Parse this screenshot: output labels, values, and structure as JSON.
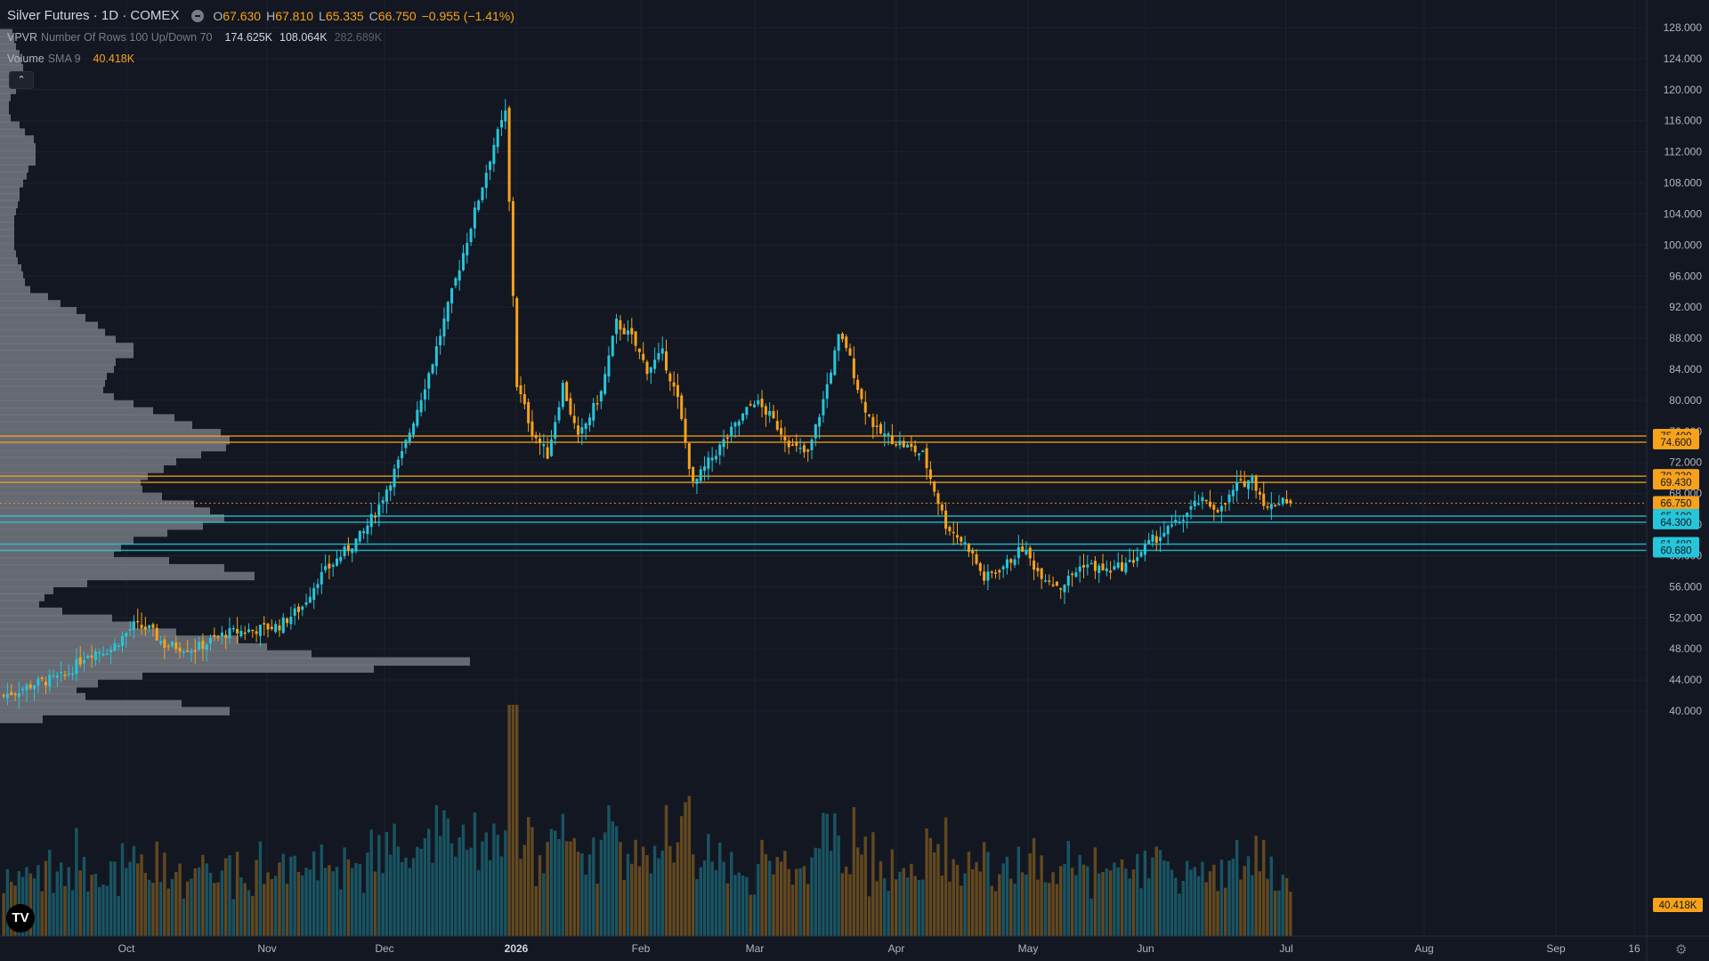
{
  "header": {
    "symbol": "Silver Futures · 1D · COMEX",
    "ohlc": {
      "o_label": "O",
      "o": "67.630",
      "h_label": "H",
      "h": "67.810",
      "l_label": "L",
      "l": "65.335",
      "c_label": "C",
      "c": "66.750",
      "chg": "−0.955 (−1.41%)"
    },
    "vpvr": {
      "name": "VPVR",
      "params": "Number Of Rows 100 Up/Down 70",
      "up": "174.625K",
      "down": "108.064K",
      "total": "282.689K"
    },
    "volume": {
      "name": "Volume",
      "params": "SMA 9",
      "value": "40.418K"
    },
    "collapse_glyph": "⌃"
  },
  "colors": {
    "background": "#131722",
    "up": "#26c6da",
    "down": "#f7a21b",
    "grid": "#1e222d",
    "text": "#b2b5be",
    "profile": "#6f727b"
  },
  "icons": {
    "logo": "tradingview-logo-icon",
    "settings": "gear-icon",
    "visibility": "eye-icon"
  },
  "logo_text": "TV",
  "chart_data": {
    "type": "candlestick",
    "title": "Silver Futures · 1D · COMEX",
    "y_axis_ticks": [
      "128.000",
      "124.000",
      "120.000",
      "116.000",
      "112.000",
      "108.000",
      "104.000",
      "100.000",
      "96.000",
      "92.000",
      "88.000",
      "84.000",
      "80.000",
      "76.000",
      "72.000",
      "68.000",
      "64.000",
      "60.000",
      "56.000",
      "52.000",
      "48.000",
      "44.000",
      "40.000"
    ],
    "ylim": [
      37.0,
      130.0
    ],
    "x_axis_labels": [
      "Oct",
      "Nov",
      "Dec",
      "2026",
      "Feb",
      "Mar",
      "Apr",
      "May",
      "Jun",
      "Jul",
      "Aug",
      "Sep",
      "16"
    ],
    "horizontal_levels": [
      {
        "value": 75.4,
        "label": "75.400",
        "color": "#f7a21b"
      },
      {
        "value": 74.6,
        "label": "74.600",
        "color": "#f7a21b"
      },
      {
        "value": 70.23,
        "label": "70.230",
        "color": "#f7a21b"
      },
      {
        "value": 69.43,
        "label": "69.430",
        "color": "#f7a21b"
      },
      {
        "value": 66.75,
        "label": "66.750",
        "color": "#f7a21b"
      },
      {
        "value": 65.1,
        "label": "65.100",
        "color": "#26c6da"
      },
      {
        "value": 64.3,
        "label": "64.300",
        "color": "#26c6da"
      },
      {
        "value": 61.48,
        "label": "61.480",
        "color": "#26c6da"
      },
      {
        "value": 60.68,
        "label": "60.680",
        "color": "#26c6da"
      }
    ],
    "volume_label": "40.418K",
    "price_path": [
      [
        0,
        42
      ],
      [
        8,
        43.5
      ],
      [
        16,
        44.5
      ],
      [
        22,
        47.5
      ],
      [
        28,
        48
      ],
      [
        34,
        51
      ],
      [
        38,
        50.5
      ],
      [
        42,
        48.5
      ],
      [
        50,
        48
      ],
      [
        58,
        50
      ],
      [
        66,
        50.5
      ],
      [
        72,
        51
      ],
      [
        78,
        53.5
      ],
      [
        82,
        57
      ],
      [
        86,
        59
      ],
      [
        90,
        61
      ],
      [
        94,
        63
      ],
      [
        98,
        66.5
      ],
      [
        104,
        73
      ],
      [
        108,
        79
      ],
      [
        112,
        85
      ],
      [
        116,
        92
      ],
      [
        120,
        99
      ],
      [
        124,
        106
      ],
      [
        128,
        113
      ],
      [
        131,
        117
      ],
      [
        134,
        82
      ],
      [
        138,
        76
      ],
      [
        142,
        73
      ],
      [
        146,
        82
      ],
      [
        150,
        75
      ],
      [
        156,
        81
      ],
      [
        160,
        90
      ],
      [
        164,
        88
      ],
      [
        168,
        84
      ],
      [
        172,
        86
      ],
      [
        176,
        80
      ],
      [
        180,
        69
      ],
      [
        184,
        72
      ],
      [
        190,
        76
      ],
      [
        196,
        80
      ],
      [
        200,
        78
      ],
      [
        206,
        74
      ],
      [
        210,
        73
      ],
      [
        214,
        80
      ],
      [
        218,
        88
      ],
      [
        220,
        87
      ],
      [
        224,
        80
      ],
      [
        228,
        76
      ],
      [
        232,
        75
      ],
      [
        236,
        74
      ],
      [
        240,
        73
      ],
      [
        246,
        64
      ],
      [
        252,
        61
      ],
      [
        256,
        57
      ],
      [
        262,
        59
      ],
      [
        266,
        61
      ],
      [
        270,
        58
      ],
      [
        276,
        56
      ],
      [
        282,
        59
      ],
      [
        288,
        58
      ],
      [
        294,
        59
      ],
      [
        300,
        62
      ],
      [
        306,
        64
      ],
      [
        312,
        67
      ],
      [
        318,
        66
      ],
      [
        322,
        69
      ],
      [
        326,
        70
      ],
      [
        330,
        66
      ],
      [
        334,
        67.5
      ],
      [
        336,
        66.75
      ]
    ],
    "volume_profile": [
      {
        "price": 127.3,
        "volume": 14,
        "buy_share": 0.5
      },
      {
        "price": 126.4,
        "volume": 16,
        "buy_share": 0.5
      },
      {
        "price": 125.5,
        "volume": 18,
        "buy_share": 0.5
      },
      {
        "price": 124.6,
        "volume": 22,
        "buy_share": 0.5
      },
      {
        "price": 123.7,
        "volume": 24,
        "buy_share": 0.5
      },
      {
        "price": 122.8,
        "volume": 26,
        "buy_share": 0.5
      },
      {
        "price": 121.8,
        "volume": 26,
        "buy_share": 0.5
      },
      {
        "price": 120.9,
        "volume": 22,
        "buy_share": 0.5
      },
      {
        "price": 120.0,
        "volume": 18,
        "buy_share": 0.5
      },
      {
        "price": 119.1,
        "volume": 12,
        "buy_share": 0.5
      },
      {
        "price": 118.2,
        "volume": 10,
        "buy_share": 0.5
      },
      {
        "price": 117.2,
        "volume": 10,
        "buy_share": 0.5
      },
      {
        "price": 116.3,
        "volume": 12,
        "buy_share": 0.5
      },
      {
        "price": 115.4,
        "volume": 22,
        "buy_share": 0.5
      },
      {
        "price": 114.5,
        "volume": 28,
        "buy_share": 0.5
      },
      {
        "price": 113.6,
        "volume": 38,
        "buy_share": 0.5
      },
      {
        "price": 112.6,
        "volume": 40,
        "buy_share": 0.5
      },
      {
        "price": 111.7,
        "volume": 40,
        "buy_share": 0.5
      },
      {
        "price": 110.8,
        "volume": 40,
        "buy_share": 0.5
      },
      {
        "price": 109.9,
        "volume": 32,
        "buy_share": 0.5
      },
      {
        "price": 109.0,
        "volume": 30,
        "buy_share": 0.5
      },
      {
        "price": 108.0,
        "volume": 26,
        "buy_share": 0.5
      },
      {
        "price": 107.1,
        "volume": 22,
        "buy_share": 0.5
      },
      {
        "price": 106.2,
        "volume": 22,
        "buy_share": 0.5
      },
      {
        "price": 105.3,
        "volume": 20,
        "buy_share": 0.5
      },
      {
        "price": 104.4,
        "volume": 18,
        "buy_share": 0.5
      },
      {
        "price": 103.4,
        "volume": 16,
        "buy_share": 0.5
      },
      {
        "price": 102.5,
        "volume": 16,
        "buy_share": 0.5
      },
      {
        "price": 101.6,
        "volume": 16,
        "buy_share": 0.5
      },
      {
        "price": 100.7,
        "volume": 16,
        "buy_share": 0.5
      },
      {
        "price": 99.8,
        "volume": 16,
        "buy_share": 0.5
      },
      {
        "price": 98.8,
        "volume": 18,
        "buy_share": 0.5
      },
      {
        "price": 97.9,
        "volume": 20,
        "buy_share": 0.5
      },
      {
        "price": 97.0,
        "volume": 24,
        "buy_share": 0.5
      },
      {
        "price": 96.1,
        "volume": 26,
        "buy_share": 0.5
      },
      {
        "price": 95.2,
        "volume": 28,
        "buy_share": 0.5
      },
      {
        "price": 94.2,
        "volume": 34,
        "buy_share": 0.5
      },
      {
        "price": 93.3,
        "volume": 54,
        "buy_share": 0.5
      },
      {
        "price": 92.4,
        "volume": 68,
        "buy_share": 0.5
      },
      {
        "price": 91.5,
        "volume": 86,
        "buy_share": 0.5
      },
      {
        "price": 90.6,
        "volume": 96,
        "buy_share": 0.5
      },
      {
        "price": 89.6,
        "volume": 110,
        "buy_share": 0.5
      },
      {
        "price": 88.7,
        "volume": 118,
        "buy_share": 0.5
      },
      {
        "price": 87.8,
        "volume": 130,
        "buy_share": 0.5
      },
      {
        "price": 86.9,
        "volume": 150,
        "buy_share": 0.5
      },
      {
        "price": 86.0,
        "volume": 150,
        "buy_share": 0.5
      },
      {
        "price": 85.0,
        "volume": 130,
        "buy_share": 0.5
      },
      {
        "price": 84.1,
        "volume": 128,
        "buy_share": 0.5
      },
      {
        "price": 83.2,
        "volume": 120,
        "buy_share": 0.5
      },
      {
        "price": 82.3,
        "volume": 118,
        "buy_share": 0.5
      },
      {
        "price": 81.4,
        "volume": 116,
        "buy_share": 0.5
      },
      {
        "price": 80.4,
        "volume": 128,
        "buy_share": 0.5
      },
      {
        "price": 79.5,
        "volume": 150,
        "buy_share": 0.5
      },
      {
        "price": 78.6,
        "volume": 172,
        "buy_share": 0.5
      },
      {
        "price": 77.7,
        "volume": 196,
        "buy_share": 0.5
      },
      {
        "price": 76.8,
        "volume": 216,
        "buy_share": 0.5
      },
      {
        "price": 75.8,
        "volume": 248,
        "buy_share": 0.5
      },
      {
        "price": 74.9,
        "volume": 258,
        "buy_share": 0.5
      },
      {
        "price": 74.0,
        "volume": 254,
        "buy_share": 0.5
      },
      {
        "price": 73.1,
        "volume": 226,
        "buy_share": 0.5
      },
      {
        "price": 72.2,
        "volume": 198,
        "buy_share": 0.5
      },
      {
        "price": 71.2,
        "volume": 184,
        "buy_share": 0.5
      },
      {
        "price": 70.3,
        "volume": 166,
        "buy_share": 0.5
      },
      {
        "price": 69.4,
        "volume": 158,
        "buy_share": 0.5
      },
      {
        "price": 68.5,
        "volume": 160,
        "buy_share": 0.5
      },
      {
        "price": 67.6,
        "volume": 182,
        "buy_share": 0.5
      },
      {
        "price": 66.6,
        "volume": 218,
        "buy_share": 0.5
      },
      {
        "price": 65.7,
        "volume": 236,
        "buy_share": 0.5
      },
      {
        "price": 64.8,
        "volume": 252,
        "buy_share": 0.5
      },
      {
        "price": 63.9,
        "volume": 228,
        "buy_share": 0.5
      },
      {
        "price": 63.0,
        "volume": 188,
        "buy_share": 0.5
      },
      {
        "price": 62.0,
        "volume": 150,
        "buy_share": 0.5
      },
      {
        "price": 61.1,
        "volume": 136,
        "buy_share": 0.5
      },
      {
        "price": 60.2,
        "volume": 128,
        "buy_share": 0.5
      },
      {
        "price": 59.3,
        "volume": 190,
        "buy_share": 0.5
      },
      {
        "price": 58.4,
        "volume": 252,
        "buy_share": 0.5
      },
      {
        "price": 57.4,
        "volume": 286,
        "buy_share": 0.5
      },
      {
        "price": 56.5,
        "volume": 98,
        "buy_share": 0.5
      },
      {
        "price": 55.6,
        "volume": 60,
        "buy_share": 0.5
      },
      {
        "price": 54.7,
        "volume": 50,
        "buy_share": 0.5
      },
      {
        "price": 53.8,
        "volume": 44,
        "buy_share": 0.5
      },
      {
        "price": 52.8,
        "volume": 70,
        "buy_share": 0.5
      },
      {
        "price": 51.9,
        "volume": 126,
        "buy_share": 0.5
      },
      {
        "price": 51.0,
        "volume": 150,
        "buy_share": 0.5
      },
      {
        "price": 50.1,
        "volume": 198,
        "buy_share": 0.5
      },
      {
        "price": 49.2,
        "volume": 268,
        "buy_share": 0.5
      },
      {
        "price": 48.2,
        "volume": 300,
        "buy_share": 0.5
      },
      {
        "price": 47.3,
        "volume": 350,
        "buy_share": 0.5
      },
      {
        "price": 46.4,
        "volume": 528,
        "buy_share": 0.5
      },
      {
        "price": 45.5,
        "volume": 420,
        "buy_share": 0.5
      },
      {
        "price": 44.6,
        "volume": 160,
        "buy_share": 0.5
      },
      {
        "price": 43.6,
        "volume": 110,
        "buy_share": 0.5
      },
      {
        "price": 42.7,
        "volume": 86,
        "buy_share": 0.5
      },
      {
        "price": 41.8,
        "volume": 96,
        "buy_share": 0.5
      },
      {
        "price": 40.9,
        "volume": 204,
        "buy_share": 0.5
      },
      {
        "price": 40.0,
        "volume": 258,
        "buy_share": 0.5
      },
      {
        "price": 39.0,
        "volume": 48,
        "buy_share": 0.5
      }
    ]
  }
}
